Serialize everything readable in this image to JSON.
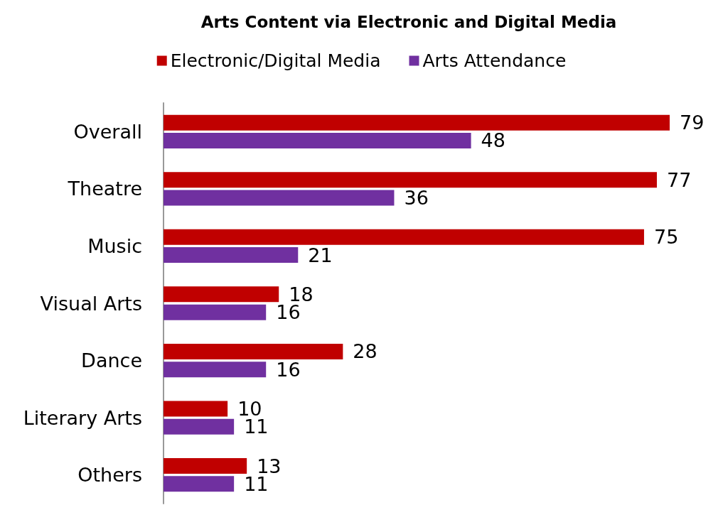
{
  "chart_data": {
    "type": "bar",
    "orientation": "horizontal",
    "title": "Arts Content via Electronic and Digital Media",
    "categories": [
      "Overall",
      "Theatre",
      "Music",
      "Visual Arts",
      "Dance",
      "Literary Arts",
      "Others"
    ],
    "series": [
      {
        "name": "Electronic/Digital Media",
        "color": "#c00000",
        "values": [
          79,
          77,
          75,
          18,
          28,
          10,
          13
        ]
      },
      {
        "name": "Arts Attendance",
        "color": "#7030a0",
        "values": [
          48,
          36,
          21,
          16,
          16,
          11,
          11
        ]
      }
    ],
    "data_labels": true,
    "legend": "top"
  }
}
